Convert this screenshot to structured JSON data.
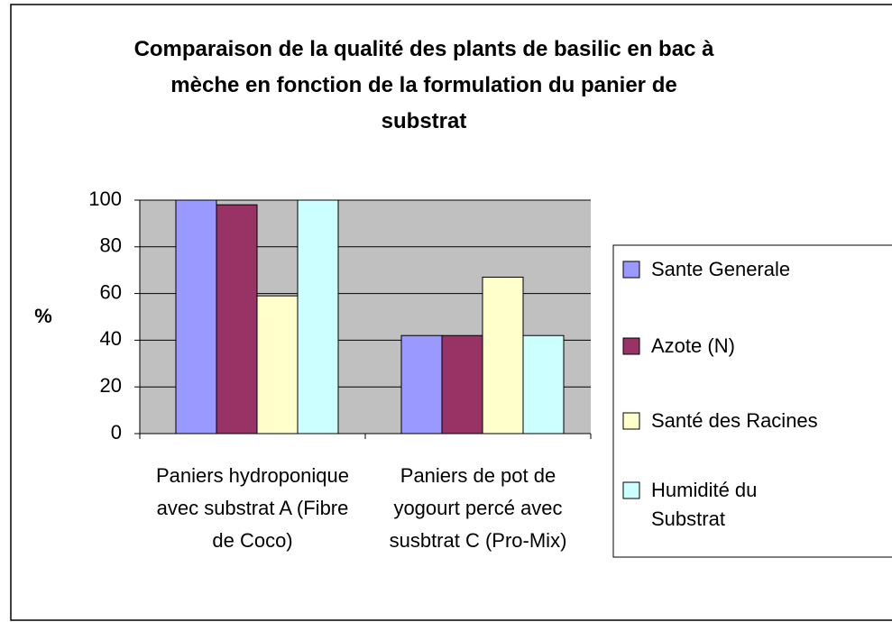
{
  "chart_data": {
    "type": "bar",
    "title": "Comparaison de la qualité des plants de basilic en bac à mèche en fonction de la formulation du panier de substrat",
    "ylabel": "%",
    "categories": [
      "Paniers hydroponique avec substrat A (Fibre de Coco)",
      "Paniers de pot de yogourt percé avec susbtrat C (Pro-Mix)"
    ],
    "series": [
      {
        "name": "Sante Generale",
        "color": "#9999ff",
        "values": [
          100,
          42
        ]
      },
      {
        "name": "Azote (N)",
        "color": "#993366",
        "values": [
          98,
          42
        ]
      },
      {
        "name": "Santé des Racines",
        "color": "#ffffcc",
        "values": [
          59,
          67
        ]
      },
      {
        "name": "Humidité du Substrat",
        "color": "#ccffff",
        "values": [
          100,
          42
        ]
      }
    ],
    "ylim": [
      0,
      100
    ],
    "yticks": [
      0,
      20,
      40,
      60,
      80,
      100
    ],
    "grid": true,
    "legend": "right"
  }
}
